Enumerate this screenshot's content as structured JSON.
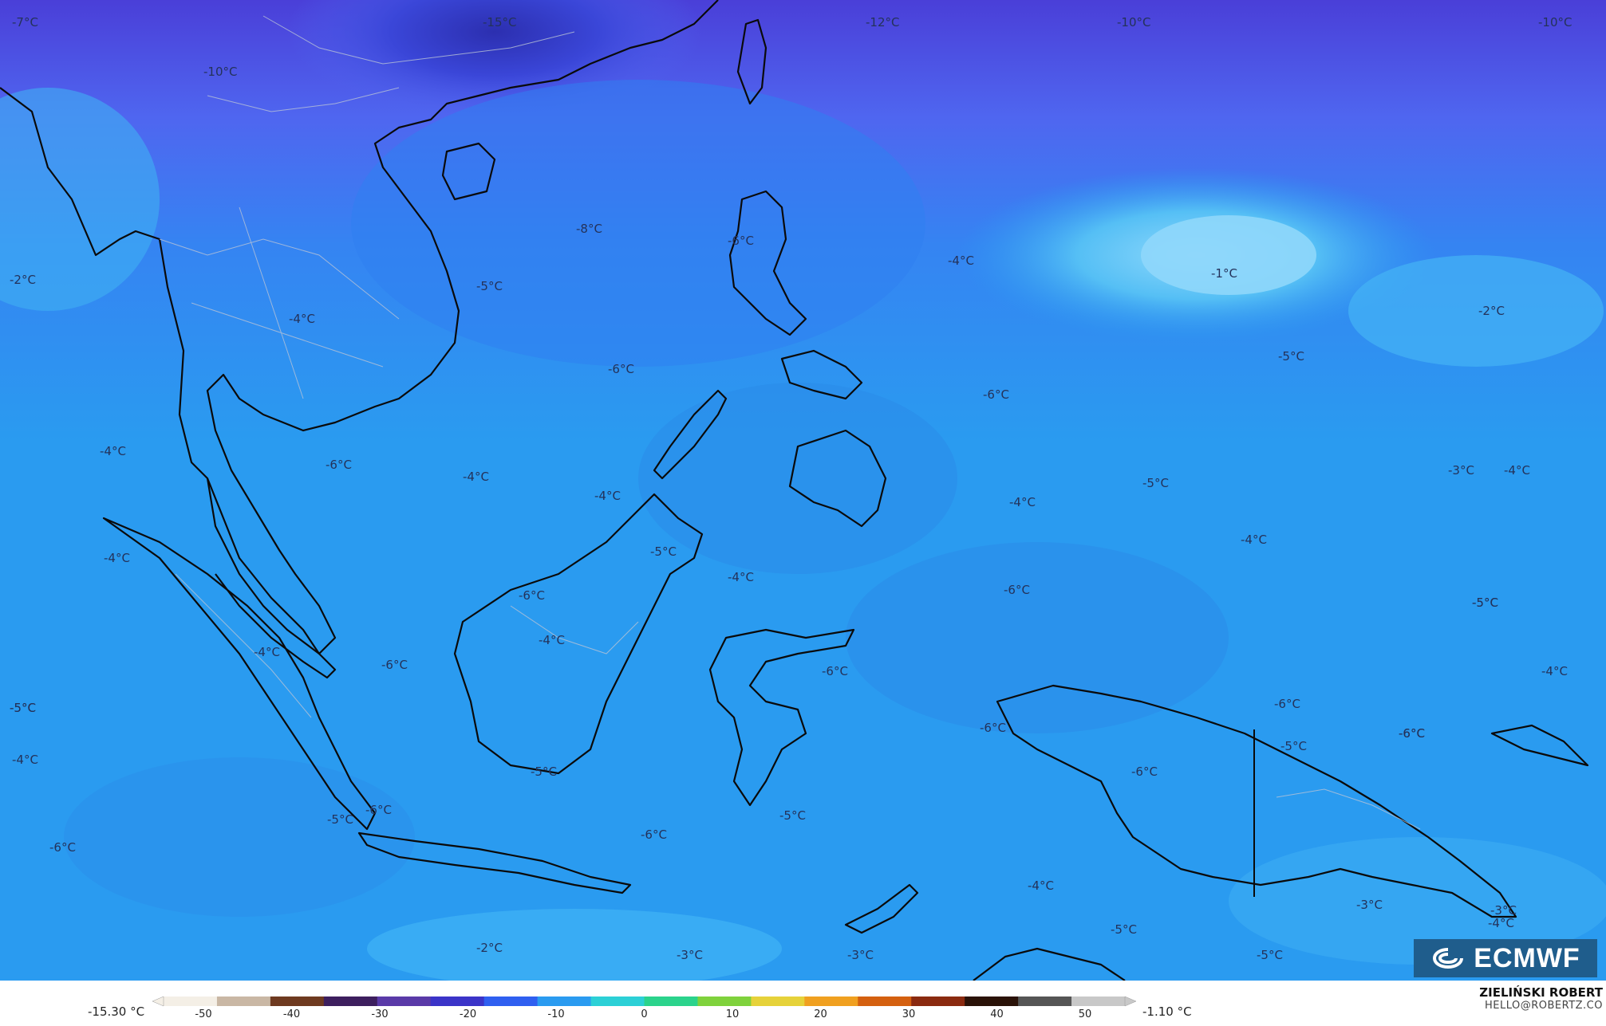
{
  "map": {
    "background_color": "#2a9bf0",
    "labels": [
      {
        "text": "-7°C"
      },
      {
        "text": "-15°C"
      },
      {
        "text": "-12°C"
      },
      {
        "text": "-10°C"
      },
      {
        "text": "-10°C"
      },
      {
        "text": "-10°C"
      },
      {
        "text": "-8°C"
      },
      {
        "text": "-6°C"
      },
      {
        "text": "-2°C"
      },
      {
        "text": "-5°C"
      },
      {
        "text": "-4°C"
      },
      {
        "text": "-1°C"
      },
      {
        "text": "-2°C"
      },
      {
        "text": "-4°C"
      },
      {
        "text": "-6°C"
      },
      {
        "text": "-5°C"
      },
      {
        "text": "-6°C"
      },
      {
        "text": "-4°C"
      },
      {
        "text": "-6°C"
      },
      {
        "text": "-4°C"
      },
      {
        "text": "-4°C"
      },
      {
        "text": "-5°C"
      },
      {
        "text": "-4°C"
      },
      {
        "text": "-3°C"
      },
      {
        "text": "-4°C"
      },
      {
        "text": "-4°C"
      },
      {
        "text": "-5°C"
      },
      {
        "text": "-4°C"
      },
      {
        "text": "-6°C"
      },
      {
        "text": "-6°C"
      },
      {
        "text": "-5°C"
      },
      {
        "text": "-4°C"
      },
      {
        "text": "-6°C"
      },
      {
        "text": "-6°C"
      },
      {
        "text": "-4°C"
      },
      {
        "text": "-4°C"
      },
      {
        "text": "-6°C"
      },
      {
        "text": "-5°C"
      },
      {
        "text": "-6°C"
      },
      {
        "text": "-4°C"
      },
      {
        "text": "-6°C"
      },
      {
        "text": "-5°C"
      },
      {
        "text": "-6°C"
      },
      {
        "text": "-5°C"
      },
      {
        "text": "-4°C"
      },
      {
        "text": "-5°C"
      },
      {
        "text": "-6°C"
      },
      {
        "text": "-5°C"
      },
      {
        "text": "-6°C"
      },
      {
        "text": "-6°C"
      },
      {
        "text": "-5°C"
      },
      {
        "text": "-4°C"
      },
      {
        "text": "-6°C"
      },
      {
        "text": "-5°C"
      },
      {
        "text": "-2°C"
      },
      {
        "text": "-3°C"
      },
      {
        "text": "-3°C"
      },
      {
        "text": "-5°C"
      },
      {
        "text": "-5°C"
      },
      {
        "text": "-3°C"
      },
      {
        "text": "-3°C"
      },
      {
        "text": "-4°C"
      }
    ]
  },
  "logo": {
    "text": "ECMWF"
  },
  "legend": {
    "min_label": "-15.30 °C",
    "max_label": "-1.10 °C",
    "ticks": [
      "-50",
      "-40",
      "-30",
      "-20",
      "-10",
      "0",
      "10",
      "20",
      "30",
      "40",
      "50"
    ],
    "colors": [
      "#f4efe6",
      "#c9b7a4",
      "#6e3a20",
      "#3d1f5e",
      "#5a3aa8",
      "#3b34c8",
      "#2f5ff0",
      "#2a9bf0",
      "#2cd0d6",
      "#2bd38c",
      "#7fd23c",
      "#e6d23a",
      "#f0a020",
      "#d46010",
      "#8a2a10",
      "#2a1208",
      "#555555",
      "#c8c8c8"
    ]
  },
  "author": {
    "name": "ZIELIŃSKI ROBERT",
    "email": "HELLO@ROBERTZ.CO"
  }
}
